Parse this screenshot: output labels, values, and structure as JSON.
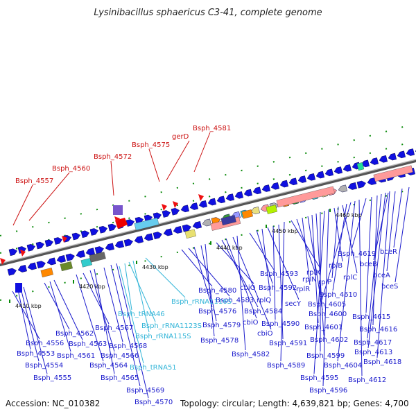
{
  "title": "Lysinibacillus sphaericus C3-41, complete genome",
  "footer": {
    "accession": "Accession: NC_010382",
    "summary": "Topology: circular; Length: 4,639,821 bp; Genes: 4,700"
  },
  "colors": {
    "gene_label": "#1a1acc",
    "rna_label": "#33b5d8",
    "highlight_label": "#cc1111",
    "backbone": "#8a8a8a",
    "forward_gene": "#1010e0"
  },
  "ticks": [
    "4410 kbp",
    "4420 kbp",
    "4430 kbp",
    "4440 kbp",
    "4450 kbp",
    "4460 kbp"
  ],
  "highlight_labels": [
    "Bsph_4557",
    "Bsph_4560",
    "Bsph_4572",
    "Bsph_4575",
    "gerD",
    "Bsph_4581"
  ],
  "gene_labels": [
    "Bsph_4556",
    "Bsph_4553",
    "Bsph_4554",
    "Bsph_4555",
    "Bsph_4562",
    "Bsph_4561",
    "Bsph_4563",
    "Bsph_4564",
    "Bsph_4567",
    "Bsph_4566",
    "Bsph_4565",
    "Bsph_4568",
    "Bsph_4569",
    "Bsph_4570",
    "Bsph_4580",
    "Bsph_4583",
    "Bsph_4576",
    "Bsph_4579",
    "Bsph_4578",
    "cbiO",
    "Bsph_4584",
    "cbiO",
    "cbiO",
    "Bsph_4582",
    "Bsph_4593",
    "Bsph_4592",
    "rplQ",
    "secY",
    "Bsph_4590",
    "Bsph_4591",
    "Bsph_4589",
    "rplX",
    "rplN",
    "rplR",
    "Bsph_4600",
    "Bsph_4601",
    "Bsph_4602",
    "Bsph_4599",
    "Bsph_4595",
    "Bsph_4596",
    "rplB",
    "rplP",
    "rplC",
    "Bsph_4610",
    "Bsph_4605",
    "Bsph_4604",
    "Bsph_4612",
    "Bsph_4619",
    "bceR",
    "bceB",
    "bceA",
    "bceS",
    "Bsph_4615",
    "Bsph_4616",
    "Bsph_4617",
    "Bsph_4613",
    "Bsph_4618"
  ],
  "rna_labels": [
    "Bsph_rRNA1116S",
    "Bsph_tRNA46",
    "Bsph_rRNA1123S",
    "Bsph_rRNA115S",
    "Bsph_tRNA51"
  ]
}
